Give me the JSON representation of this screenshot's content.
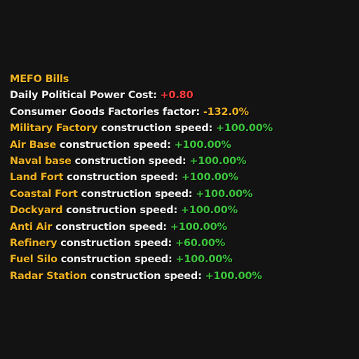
{
  "tooltip": {
    "title": "MEFO Bills",
    "political_power": {
      "label": "Daily Political Power Cost: ",
      "value": "+0.80"
    },
    "consumer_goods": {
      "label": "Consumer Goods Factories factor: ",
      "value": "-132.0%"
    },
    "construction_suffix": " construction speed: ",
    "buildings": [
      {
        "name": "Military Factory",
        "value": "+100.00%"
      },
      {
        "name": "Air Base",
        "value": "+100.00%"
      },
      {
        "name": "Naval base",
        "value": "+100.00%"
      },
      {
        "name": "Land Fort",
        "value": "+100.00%"
      },
      {
        "name": "Coastal Fort",
        "value": "+100.00%"
      },
      {
        "name": "Dockyard",
        "value": "+100.00%"
      },
      {
        "name": "Anti Air",
        "value": "+100.00%"
      },
      {
        "name": "Refinery",
        "value": "+60.00%"
      },
      {
        "name": "Fuel Silo",
        "value": "+100.00%"
      },
      {
        "name": "Radar Station",
        "value": "+100.00%"
      }
    ],
    "colors": {
      "background": "#131313",
      "title": "#f0b323",
      "text": "#f2f2f2",
      "negative_cost": "#ff3b3b",
      "factor": "#f0b323",
      "bonus": "#3ec43e"
    }
  }
}
